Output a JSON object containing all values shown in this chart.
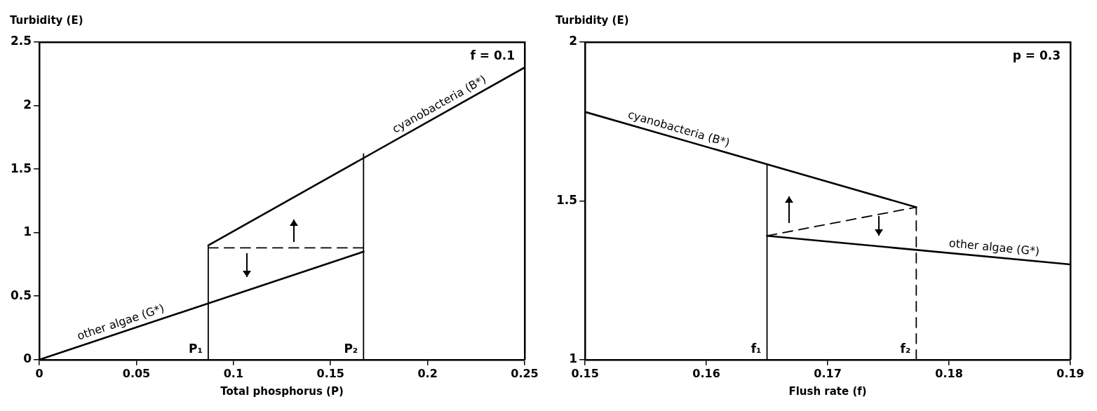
{
  "chart_data": [
    {
      "type": "line",
      "xlabel": "Total phosphorus (P)",
      "ylabel": "Turbidity (E)",
      "xlim": [
        0,
        0.25
      ],
      "xticks": [
        0,
        0.05,
        0.1,
        0.15,
        0.2,
        0.25
      ],
      "ylim": [
        0,
        2.5
      ],
      "yticks": [
        0,
        0.5,
        1,
        1.5,
        2,
        2.5
      ],
      "legend": false,
      "marker": "none",
      "annotations": [
        "f = 0.1",
        {
          "text": "P₁",
          "x": 0.087,
          "y": 0
        },
        {
          "text": "P₂",
          "x": 0.167,
          "y": 0
        }
      ],
      "series": [
        {
          "name": "cyanobacteria (B*)",
          "color": "#000000",
          "x": [
            0.087,
            0.25
          ],
          "values": [
            0.9,
            2.3
          ]
        },
        {
          "name": "other algae (G*)",
          "color": "#000000",
          "x": [
            0,
            0.167
          ],
          "values": [
            0,
            0.85
          ]
        },
        {
          "color": "#000000",
          "x": [
            0.087,
            0.087
          ],
          "values": [
            0,
            0.9
          ]
        },
        {
          "color": "#000000",
          "x": [
            0.167,
            0.167
          ],
          "values": [
            0,
            1.62
          ]
        },
        {
          "color": "#000000",
          "x": [
            0.087,
            0.167
          ],
          "values": [
            0.88,
            0.88
          ],
          "line_style": "dashed"
        }
      ]
    },
    {
      "type": "line",
      "xlabel": "Flush rate (f)",
      "ylabel": "Turbidity (E)",
      "xlim": [
        0.15,
        0.19
      ],
      "xticks": [
        0.15,
        0.16,
        0.17,
        0.18,
        0.19
      ],
      "ylim": [
        1,
        2
      ],
      "yticks": [
        1,
        1.5,
        2
      ],
      "legend": false,
      "marker": "none",
      "annotations": [
        "p = 0.3",
        {
          "text": "f₁",
          "x": 0.165,
          "y": 1
        },
        {
          "text": "f₂",
          "x": 0.1773,
          "y": 1
        }
      ],
      "series": [
        {
          "name": "cyanobacteria (B*)",
          "color": "#000000",
          "x": [
            0.15,
            0.1773
          ],
          "values": [
            1.78,
            1.48
          ]
        },
        {
          "name": "other algae (G*)",
          "color": "#000000",
          "x": [
            0.165,
            0.19
          ],
          "values": [
            1.39,
            1.3
          ]
        },
        {
          "color": "#000000",
          "x": [
            0.165,
            0.165
          ],
          "values": [
            1,
            1.615
          ]
        },
        {
          "color": "#000000",
          "x": [
            0.1773,
            0.1773
          ],
          "values": [
            1,
            1.48
          ],
          "line_style": "dashed"
        },
        {
          "color": "#000000",
          "x": [
            0.165,
            0.1773
          ],
          "values": [
            1.39,
            1.48
          ],
          "line_style": "dashed"
        }
      ]
    }
  ]
}
